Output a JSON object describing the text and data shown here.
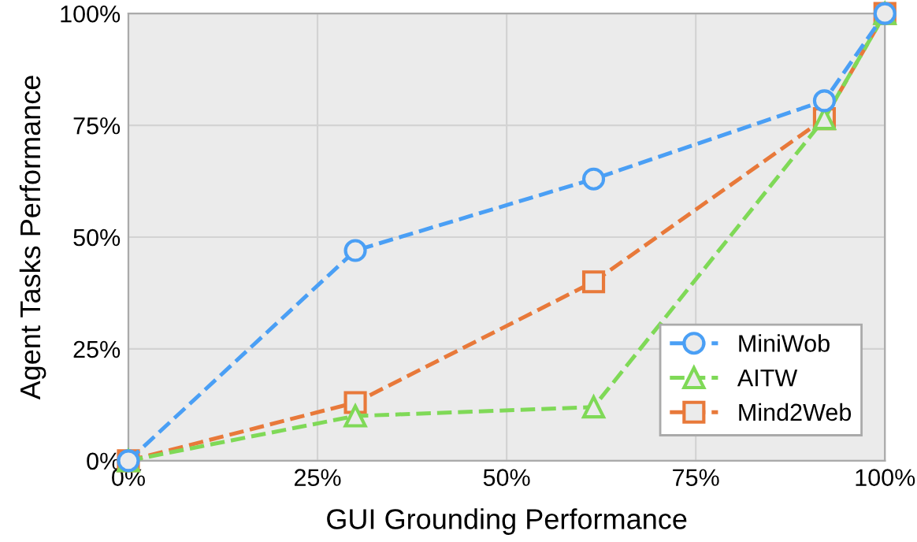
{
  "chart_data": {
    "type": "line",
    "xlabel": "GUI Grounding Performance",
    "ylabel": "Agent Tasks Performance",
    "x": [
      0,
      30,
      61.5,
      92,
      100
    ],
    "series": [
      {
        "name": "MiniWob",
        "color": "#4a9ff5",
        "values": [
          0,
          47,
          63,
          80.5,
          100
        ],
        "marker": "circle"
      },
      {
        "name": "AITW",
        "color": "#7fd957",
        "values": [
          0,
          10,
          12,
          76.5,
          100
        ],
        "marker": "triangle"
      },
      {
        "name": "Mind2Web",
        "color": "#e8793a",
        "values": [
          0,
          13,
          40,
          76.5,
          100
        ],
        "marker": "square"
      }
    ],
    "xlim": [
      0,
      100
    ],
    "ylim": [
      0,
      100
    ],
    "xticks": [
      {
        "value": 0,
        "label": "0%"
      },
      {
        "value": 25,
        "label": "25%"
      },
      {
        "value": 50,
        "label": "50%"
      },
      {
        "value": 75,
        "label": "75%"
      },
      {
        "value": 100,
        "label": "100%"
      }
    ],
    "yticks": [
      {
        "value": 0,
        "label": "0%"
      },
      {
        "value": 25,
        "label": "25%"
      },
      {
        "value": 50,
        "label": "50%"
      },
      {
        "value": 75,
        "label": "75%"
      },
      {
        "value": 100,
        "label": "100%"
      }
    ],
    "grid": true,
    "legend": "bottom right",
    "line_style": "dashed"
  }
}
